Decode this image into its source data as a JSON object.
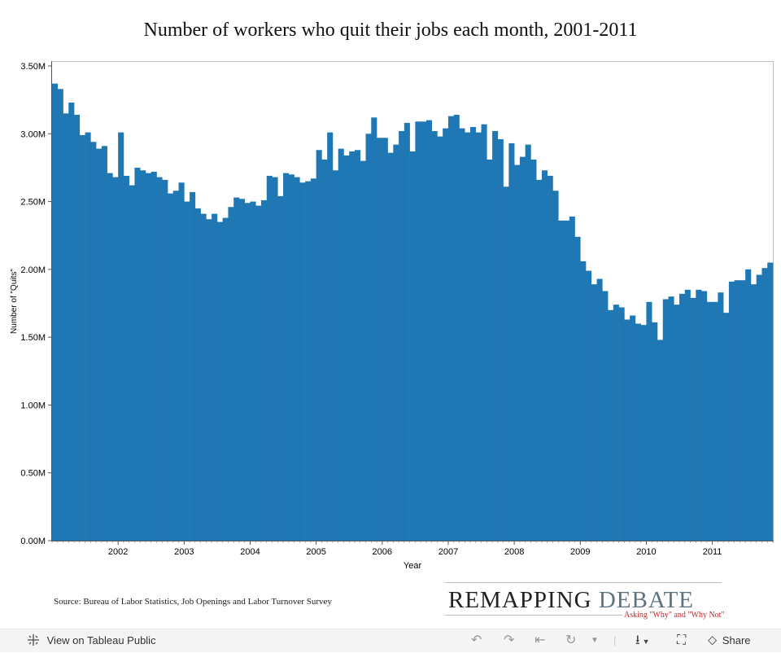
{
  "chart_data": {
    "type": "bar",
    "title": "Number of workers who quit their jobs each month, 2001-2011",
    "xlabel": "Year",
    "ylabel": "Number of \"Quits\"",
    "ylim": [
      0,
      3500000
    ],
    "y_ticks": [
      {
        "value": 0,
        "label": "0.00M"
      },
      {
        "value": 500000,
        "label": "0.50M"
      },
      {
        "value": 1000000,
        "label": "1.00M"
      },
      {
        "value": 1500000,
        "label": "1.50M"
      },
      {
        "value": 2000000,
        "label": "2.00M"
      },
      {
        "value": 2500000,
        "label": "2.50M"
      },
      {
        "value": 3000000,
        "label": "3.00M"
      },
      {
        "value": 3500000,
        "label": "3.50M"
      }
    ],
    "x_ticks": [
      "2002",
      "2003",
      "2004",
      "2005",
      "2006",
      "2007",
      "2008",
      "2009",
      "2010",
      "2011"
    ],
    "start": "2001-01",
    "bar_color": "#1f77b4",
    "series": [
      {
        "name": "Quits",
        "values": [
          3370000,
          3330000,
          3150000,
          3230000,
          3140000,
          2990000,
          3010000,
          2940000,
          2890000,
          2910000,
          2710000,
          2680000,
          3010000,
          2690000,
          2620000,
          2750000,
          2730000,
          2710000,
          2720000,
          2680000,
          2660000,
          2560000,
          2580000,
          2640000,
          2500000,
          2570000,
          2450000,
          2410000,
          2370000,
          2410000,
          2350000,
          2380000,
          2460000,
          2530000,
          2520000,
          2490000,
          2500000,
          2470000,
          2510000,
          2690000,
          2680000,
          2540000,
          2710000,
          2700000,
          2680000,
          2640000,
          2650000,
          2670000,
          2880000,
          2810000,
          3010000,
          2730000,
          2890000,
          2840000,
          2870000,
          2880000,
          2800000,
          3000000,
          3120000,
          2970000,
          2970000,
          2860000,
          2920000,
          3020000,
          3080000,
          2870000,
          3090000,
          3090000,
          3100000,
          3020000,
          2980000,
          3040000,
          3130000,
          3140000,
          3040000,
          3010000,
          3050000,
          3010000,
          3070000,
          2810000,
          3020000,
          2960000,
          2610000,
          2930000,
          2770000,
          2830000,
          2920000,
          2810000,
          2660000,
          2730000,
          2690000,
          2580000,
          2360000,
          2360000,
          2390000,
          2240000,
          2060000,
          1990000,
          1890000,
          1930000,
          1840000,
          1700000,
          1740000,
          1720000,
          1630000,
          1660000,
          1600000,
          1590000,
          1760000,
          1610000,
          1480000,
          1780000,
          1800000,
          1740000,
          1820000,
          1850000,
          1790000,
          1850000,
          1840000,
          1760000,
          1760000,
          1830000,
          1680000,
          1910000,
          1920000,
          1920000,
          2000000,
          1890000,
          1960000,
          2010000,
          2050000
        ]
      }
    ]
  },
  "footer": {
    "source": "Source: Bureau of Labor Statistics, Job Openings and Labor Turnover Survey",
    "logo_word1": "REMAPPING",
    "logo_word2": "DEBATE",
    "logo_tagline": "Asking \"Why\" and \"Why Not\""
  },
  "toolbar": {
    "view_label": "View on Tableau Public",
    "share_label": "Share",
    "icons": [
      "tableau-logo-icon",
      "undo-icon",
      "redo-icon",
      "revert-icon",
      "refresh-icon",
      "dropdown-icon",
      "download-icon",
      "fullscreen-icon",
      "share-icon"
    ]
  }
}
